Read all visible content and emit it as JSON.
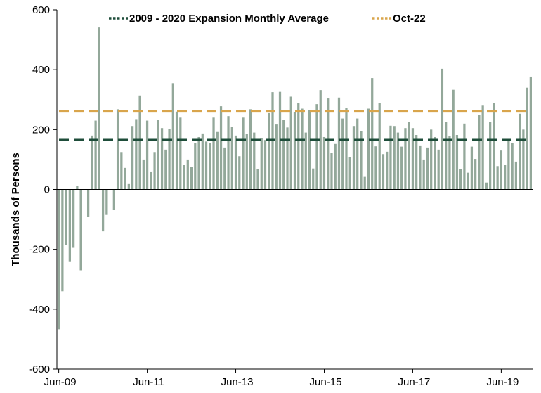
{
  "chart_data": {
    "type": "bar",
    "ylabel": "Thousands of Persons",
    "ylim": [
      -600,
      600
    ],
    "yticks": [
      600,
      400,
      200,
      0,
      -200,
      -400,
      -600
    ],
    "x_tick_labels": [
      "Jun-09",
      "Jun-11",
      "Jun-13",
      "Jun-15",
      "Jun-17",
      "Jun-19"
    ],
    "x_start": "Jun-09",
    "x_end": "Feb-20",
    "grid": false,
    "legend": {
      "placement": "top",
      "items": [
        {
          "label": "2009 - 2020 Expansion Monthly Average",
          "color": "#1e4d3a",
          "style": "dashed",
          "value": 165
        },
        {
          "label": "Oct-22",
          "color": "#d9a54c",
          "style": "dashed",
          "value": 261
        }
      ]
    },
    "bar_color": "#93a89a",
    "series": [
      {
        "values": [
          -467,
          -340,
          -185,
          -240,
          -195,
          12,
          -270,
          0,
          -92,
          180,
          230,
          541,
          -140,
          -85,
          0,
          -67,
          268,
          125,
          72,
          18,
          212,
          235,
          314,
          100,
          230,
          60,
          125,
          233,
          205,
          133,
          202,
          355,
          260,
          240,
          82,
          100,
          75,
          155,
          175,
          187,
          160,
          155,
          240,
          192,
          278,
          140,
          245,
          210,
          180,
          111,
          240,
          185,
          268,
          190,
          68,
          172,
          165,
          255,
          325,
          217,
          326,
          232,
          207,
          310,
          258,
          290,
          270,
          190,
          265,
          70,
          285,
          332,
          175,
          304,
          123,
          152,
          307,
          237,
          272,
          108,
          212,
          237,
          196,
          42,
          270,
          372,
          144,
          288,
          118,
          126,
          213,
          212,
          190,
          143,
          205,
          225,
          205,
          182,
          147,
          100,
          140,
          200,
          175,
          133,
          403,
          225,
          178,
          333,
          182,
          67,
          220,
          56,
          143,
          102,
          248,
          280,
          23,
          225,
          288,
          78,
          130,
          83,
          163,
          155,
          93,
          253,
          200,
          340,
          377
        ]
      }
    ]
  }
}
